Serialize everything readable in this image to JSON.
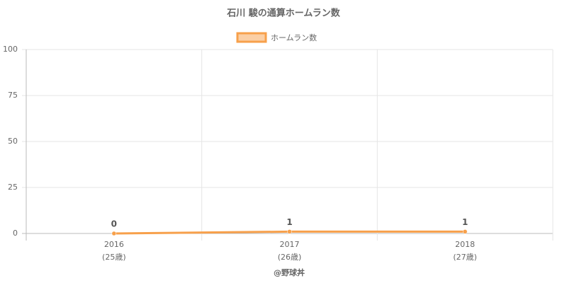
{
  "chart_data": {
    "type": "line",
    "title": "石川 駿の通算ホームラン数",
    "categories": [
      [
        "2016",
        "(25歳)"
      ],
      [
        "2017",
        "(26歳)"
      ],
      [
        "2018",
        "(27歳)"
      ]
    ],
    "series": [
      {
        "name": "ホームラン数",
        "color": "#f7a04b",
        "values": [
          0,
          1,
          1
        ]
      }
    ],
    "ylim": [
      0,
      100
    ],
    "yticks": [
      0,
      25,
      50,
      75,
      100
    ],
    "grid": true,
    "xlabel": "@野球丼",
    "legend": "top"
  }
}
